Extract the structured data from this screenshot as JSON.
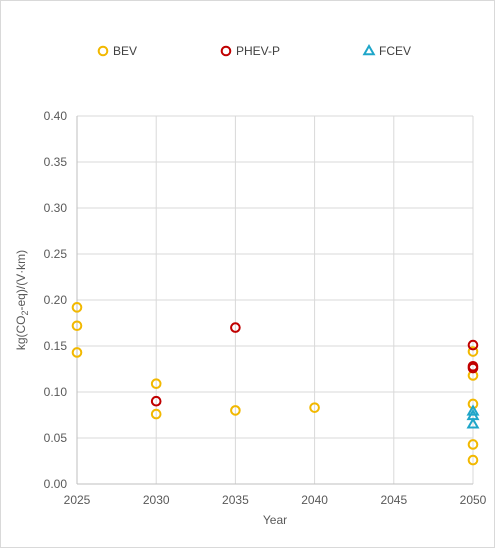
{
  "chart_data": {
    "type": "scatter",
    "xlabel": "Year",
    "ylabel": "kg(CO2-eq)/(V·km)",
    "ylabel_parts": {
      "before": "kg(CO",
      "sub": "2",
      "after": "-eq)/(V·km)"
    },
    "xlim": [
      2025,
      2050
    ],
    "ylim": [
      0,
      0.4
    ],
    "x_ticks": [
      "2025",
      "2030",
      "2035",
      "2040",
      "2045",
      "2050"
    ],
    "y_ticks": [
      "0.00",
      "0.05",
      "0.10",
      "0.15",
      "0.20",
      "0.25",
      "0.30",
      "0.35",
      "0.40"
    ],
    "grid": true,
    "legend_position": "top",
    "series": [
      {
        "name": "BEV",
        "marker": "circle",
        "color": "#f2b800",
        "points": [
          [
            2025,
            0.192
          ],
          [
            2025,
            0.172
          ],
          [
            2025,
            0.143
          ],
          [
            2030,
            0.109
          ],
          [
            2030,
            0.076
          ],
          [
            2035,
            0.08
          ],
          [
            2040,
            0.083
          ],
          [
            2050,
            0.144
          ],
          [
            2050,
            0.118
          ],
          [
            2050,
            0.087
          ],
          [
            2050,
            0.043
          ],
          [
            2050,
            0.026
          ]
        ]
      },
      {
        "name": "PHEV-P",
        "marker": "circle",
        "color": "#c00000",
        "points": [
          [
            2030,
            0.09
          ],
          [
            2035,
            0.17
          ],
          [
            2050,
            0.151
          ],
          [
            2050,
            0.128
          ],
          [
            2050,
            0.126
          ]
        ]
      },
      {
        "name": "FCEV",
        "marker": "triangle",
        "color": "#1fa6c9",
        "points": [
          [
            2050,
            0.079
          ],
          [
            2050,
            0.074
          ],
          [
            2050,
            0.065
          ]
        ]
      }
    ]
  }
}
